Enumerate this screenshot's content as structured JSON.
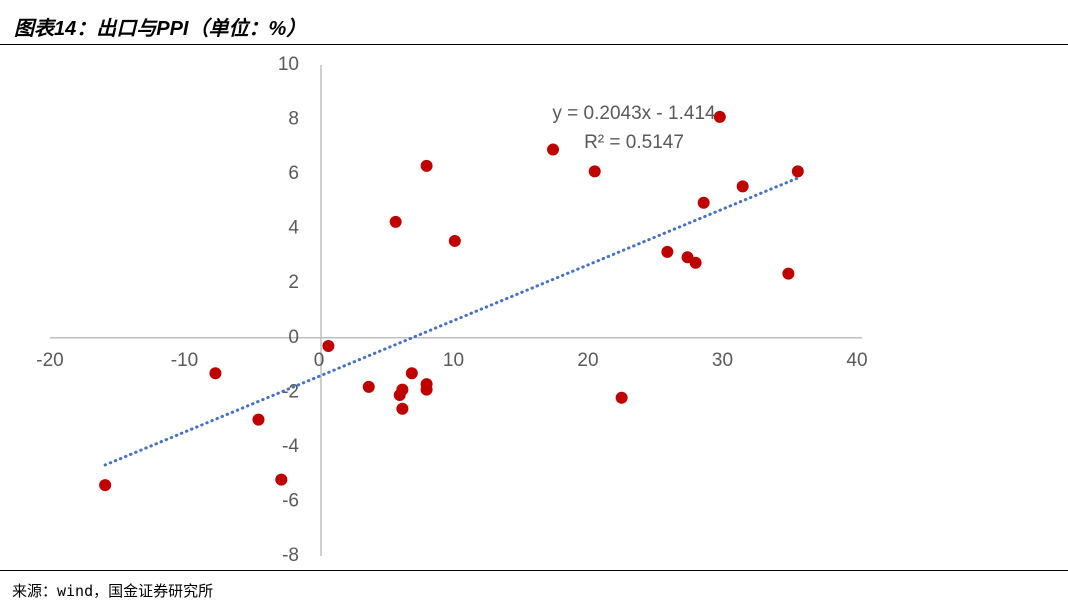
{
  "title": "图表14：出口与PPI（单位：%）",
  "source": "来源：wind，国金证券研究所",
  "chart_data": {
    "type": "scatter",
    "color": "#c00000",
    "x": [
      -15.9,
      -7.7,
      -4.5,
      -2.8,
      0.7,
      3.7,
      5.7,
      6.0,
      6.2,
      6.2,
      6.9,
      8.0,
      8.0,
      8.0,
      10.1,
      17.4,
      20.5,
      22.5,
      25.9,
      27.4,
      28.0,
      28.6,
      29.8,
      31.5,
      34.9,
      35.6
    ],
    "values": [
      -5.4,
      -1.3,
      -3.0,
      -5.2,
      -0.3,
      -1.8,
      4.25,
      -2.1,
      -1.9,
      -2.6,
      -1.3,
      6.3,
      -1.7,
      -1.9,
      3.55,
      6.9,
      6.1,
      -2.2,
      3.15,
      2.95,
      2.75,
      4.95,
      8.1,
      5.55,
      2.35,
      6.1
    ],
    "xlim": [
      -20,
      40
    ],
    "ylim": [
      -8,
      10
    ],
    "xticks": [
      -20,
      -10,
      0,
      10,
      20,
      30,
      40
    ],
    "yticks": [
      -8,
      -6,
      -4,
      -2,
      0,
      2,
      4,
      6,
      8,
      10
    ],
    "trendline": {
      "slope": 0.2043,
      "intercept": -1.414,
      "color": "#4472c4",
      "equation": "y = 0.2043x - 1.414",
      "r2": "R² = 0.5147"
    }
  }
}
